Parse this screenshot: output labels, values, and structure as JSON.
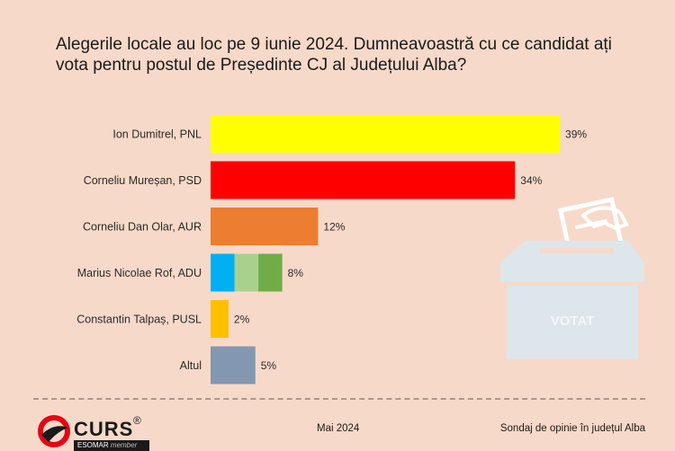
{
  "chart_data": {
    "type": "bar",
    "orientation": "horizontal",
    "title": "Alegerile locale au loc pe 9 iunie 2024. Dumneavoastră cu ce candidat ați vota pentru postul de Președinte CJ al Județului Alba?",
    "categories": [
      "Ion Dumitrel, PNL",
      "Corneliu Mureșan, PSD",
      "Corneliu Dan Olar, AUR",
      "Marius Nicolae Rof, ADU",
      "Constantin Talpaș, PUSL",
      "Altul"
    ],
    "values": [
      39,
      34,
      12,
      8,
      2,
      5
    ],
    "value_labels": [
      "39%",
      "34%",
      "12%",
      "8%",
      "2%",
      "5%"
    ],
    "unit": "%",
    "xlim": [
      0,
      40
    ],
    "grid": false,
    "colors": [
      "#ffff00",
      "#ff0000",
      "#ed7d31",
      [
        "#00b0f0",
        "#a9d18e",
        "#70ad47"
      ],
      "#ffc000",
      "#8497b0"
    ]
  },
  "graphic": {
    "ballot_box_label": "VOTAT",
    "ballot_box_color": "#dde6ea"
  },
  "footer": {
    "logo_text": "CURS",
    "logo_reg": "®",
    "logo_sub": "ESOMAR",
    "logo_sub_member": "member",
    "date": "Mai 2024",
    "source": "Sondaj de opinie în județul Alba"
  }
}
